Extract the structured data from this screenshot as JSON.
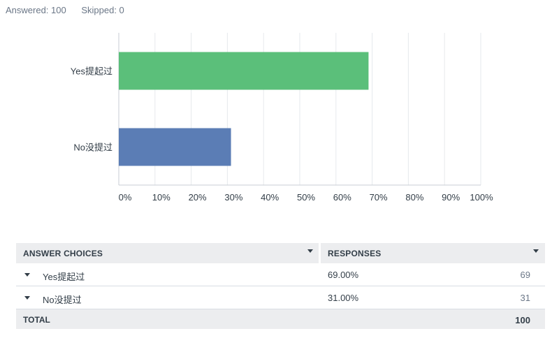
{
  "summary": {
    "answered": "Answered: 100",
    "skipped": "Skipped: 0"
  },
  "chart_data": {
    "type": "bar",
    "orientation": "horizontal",
    "categories": [
      "Yes提起过",
      "No没提过"
    ],
    "values": [
      69,
      31
    ],
    "colors": [
      "#5bbf7a",
      "#5b7db5"
    ],
    "xlim": [
      0,
      100
    ],
    "xticks": [
      "0%",
      "10%",
      "20%",
      "30%",
      "40%",
      "50%",
      "60%",
      "70%",
      "80%",
      "90%",
      "100%"
    ],
    "grid": true,
    "title": "",
    "xlabel": "",
    "ylabel": ""
  },
  "table": {
    "header": {
      "answer_choices": "ANSWER CHOICES",
      "responses": "RESPONSES"
    },
    "rows": [
      {
        "label": "Yes提起过",
        "percent": "69.00%",
        "count": "69"
      },
      {
        "label": "No没提过",
        "percent": "31.00%",
        "count": "31"
      }
    ],
    "total": {
      "label": "TOTAL",
      "count": "100"
    }
  }
}
